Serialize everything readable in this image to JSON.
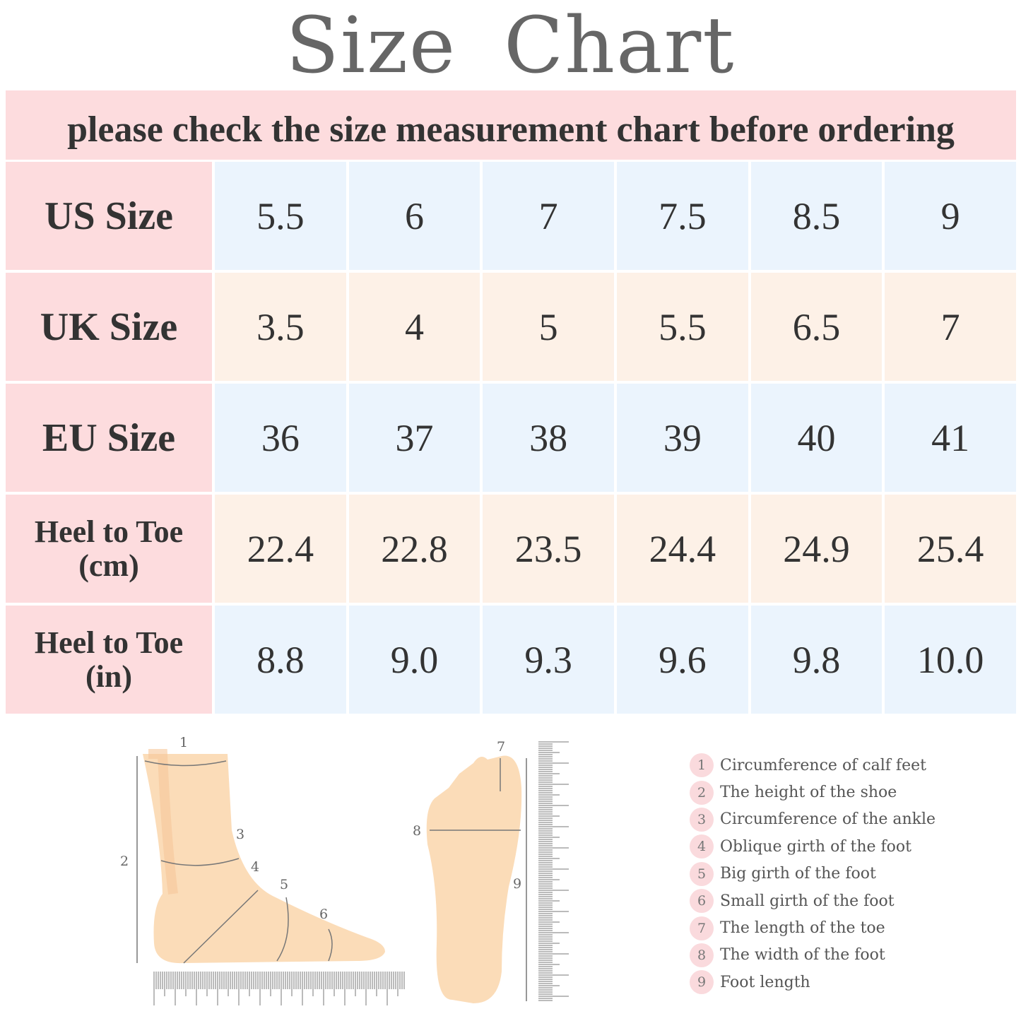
{
  "title": "Size  Chart",
  "banner": "please check the size measurement chart before ordering",
  "colors": {
    "label_bg": "#fddcde",
    "row_blue": "#ebf4fd",
    "row_peach": "#fdf1e7",
    "text": "#333333",
    "title": "#666666"
  },
  "table": {
    "rows": [
      {
        "label": "US Size",
        "values": [
          "5.5",
          "6",
          "7",
          "7.5",
          "8.5",
          "9"
        ]
      },
      {
        "label": "UK Size",
        "values": [
          "3.5",
          "4",
          "5",
          "5.5",
          "6.5",
          "7"
        ]
      },
      {
        "label": "EU Size",
        "values": [
          "36",
          "37",
          "38",
          "39",
          "40",
          "41"
        ]
      },
      {
        "label": "Heel to Toe (cm)",
        "label_line1": "Heel to Toe",
        "label_line2": "(cm)",
        "values": [
          "22.4",
          "22.8",
          "23.5",
          "24.4",
          "24.9",
          "25.4"
        ]
      },
      {
        "label": "Heel to Toe (in)",
        "label_line1": "Heel to Toe",
        "label_line2": "(in)",
        "values": [
          "8.8",
          "9.0",
          "9.3",
          "9.6",
          "9.8",
          "10.0"
        ]
      }
    ]
  },
  "diagram": {
    "side_labels": [
      "1",
      "2",
      "3",
      "4",
      "5",
      "6"
    ],
    "sole_labels": [
      "7",
      "8",
      "9"
    ]
  },
  "legend": [
    {
      "n": "1",
      "text": "Circumference of calf feet"
    },
    {
      "n": "2",
      "text": "The height of the shoe"
    },
    {
      "n": "3",
      "text": "Circumference of the ankle"
    },
    {
      "n": "4",
      "text": "Oblique girth of the foot"
    },
    {
      "n": "5",
      "text": "Big girth of the foot"
    },
    {
      "n": "6",
      "text": "Small girth of the foot"
    },
    {
      "n": "7",
      "text": "The length of the toe"
    },
    {
      "n": "8",
      "text": "The width of the foot"
    },
    {
      "n": "9",
      "text": "Foot length"
    }
  ]
}
